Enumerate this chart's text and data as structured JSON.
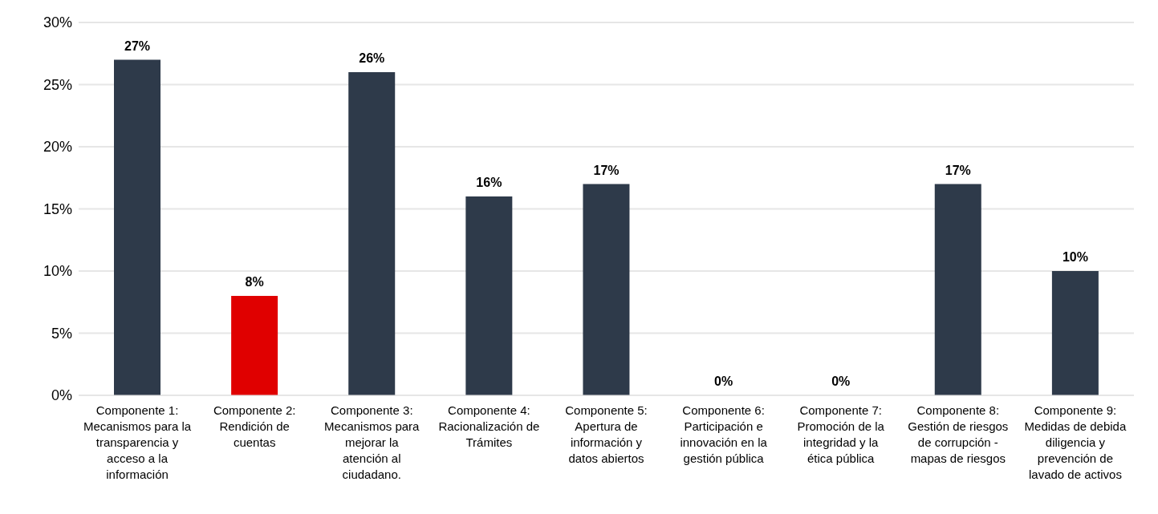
{
  "chart_data": {
    "type": "bar",
    "categories": [
      "Componente 1: Mecanismos para la transparencia y acceso a la información",
      "Componente 2: Rendición de cuentas",
      "Componente 3: Mecanismos para mejorar la atención al ciudadano.",
      "Componente 4: Racionalización de Trámites",
      "Componente 5: Apertura de información y datos abiertos",
      "Componente 6: Participación e innovación en la gestión pública",
      "Componente 7: Promoción de la integridad y la ética pública",
      "Componente 8: Gestión de riesgos de corrupción - mapas de riesgos",
      "Componente 9: Medidas de debida diligencia y prevención de lavado de activos"
    ],
    "values": [
      27,
      8,
      26,
      16,
      17,
      0,
      0,
      17,
      10
    ],
    "colors": [
      "#2e3a4a",
      "#e00000",
      "#2e3a4a",
      "#2e3a4a",
      "#2e3a4a",
      "#c00000",
      "#c00000",
      "#2e3a4a",
      "#2e3a4a"
    ],
    "value_labels": [
      "27%",
      "8%",
      "26%",
      "16%",
      "17%",
      "0%",
      "0%",
      "17%",
      "10%"
    ],
    "ylim": [
      0,
      30
    ],
    "yticks": [
      {
        "value": 0,
        "label": "0%"
      },
      {
        "value": 5,
        "label": "5%"
      },
      {
        "value": 10,
        "label": "10%"
      },
      {
        "value": 15,
        "label": "15%"
      },
      {
        "value": 20,
        "label": "20%"
      },
      {
        "value": 25,
        "label": "25%"
      },
      {
        "value": 30,
        "label": "30%"
      }
    ],
    "grid": "y",
    "legend": false
  }
}
